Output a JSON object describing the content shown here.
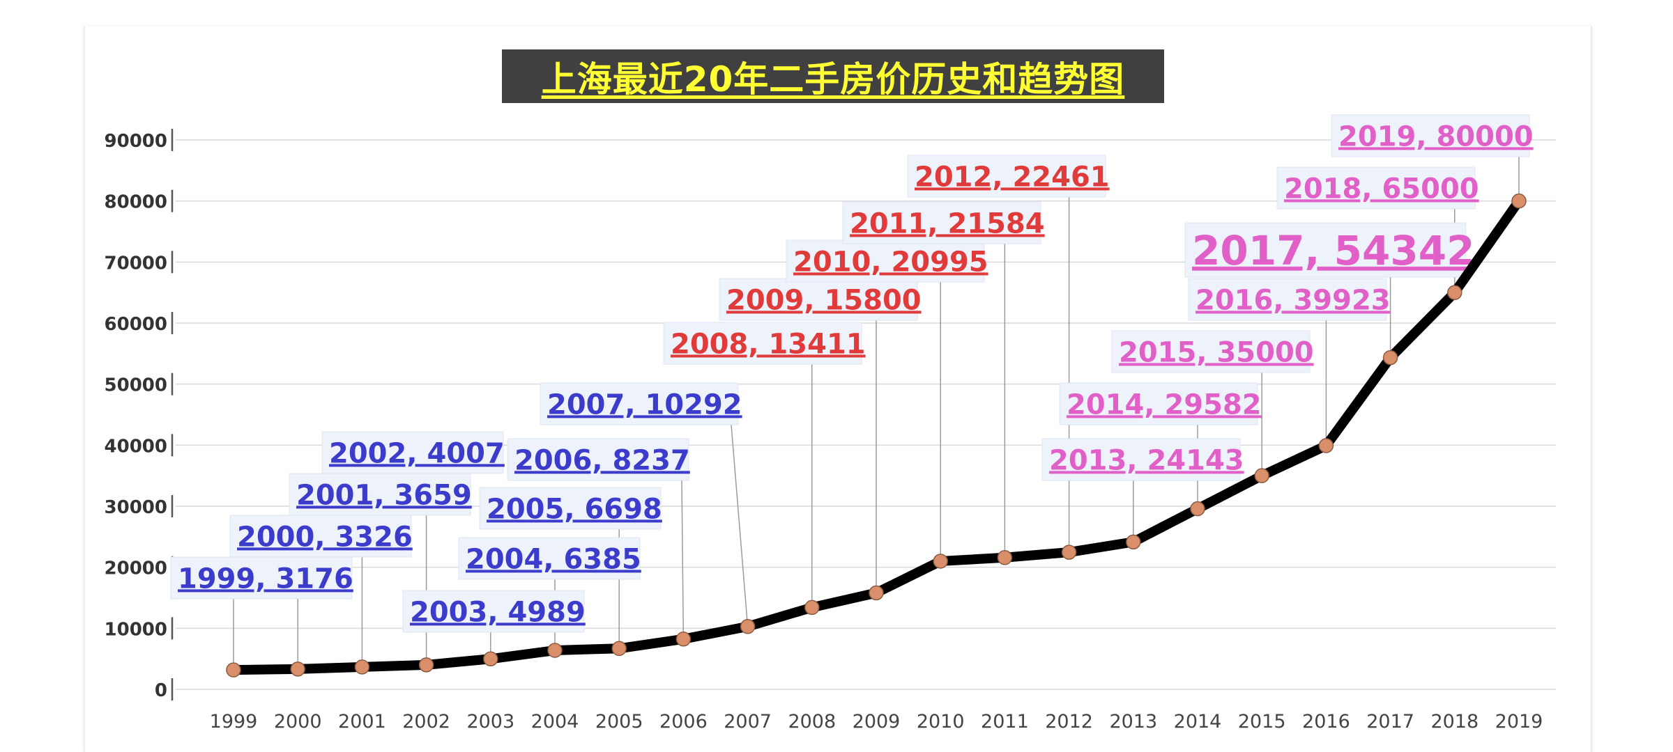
{
  "chart_data": {
    "type": "line",
    "title": "上海最近20年二手房价历史和趋势图",
    "xlabel": "",
    "ylabel": "",
    "ylim": [
      0,
      90000
    ],
    "yticks": [
      0,
      10000,
      20000,
      30000,
      40000,
      50000,
      60000,
      70000,
      80000,
      90000
    ],
    "grid": true,
    "legend": "none",
    "line_color": "#000000",
    "marker_color": "#d9906a",
    "categories": [
      "1999",
      "2000",
      "2001",
      "2002",
      "2003",
      "2004",
      "2005",
      "2006",
      "2007",
      "2008",
      "2009",
      "2010",
      "2011",
      "2012",
      "2013",
      "2014",
      "2015",
      "2016",
      "2017",
      "2018",
      "2019"
    ],
    "values": [
      3176,
      3326,
      3659,
      4007,
      4989,
      6385,
      6698,
      8237,
      10292,
      13411,
      15800,
      20995,
      21584,
      22461,
      24143,
      29582,
      35000,
      39923,
      54342,
      65000,
      80000
    ],
    "data_labels": [
      {
        "text": "1999, 3176",
        "color": "#3c3ccc"
      },
      {
        "text": "2000, 3326",
        "color": "#3c3ccc"
      },
      {
        "text": "2001, 3659",
        "color": "#3c3ccc"
      },
      {
        "text": "2002, 4007",
        "color": "#3c3ccc"
      },
      {
        "text": "2003, 4989",
        "color": "#3c3ccc"
      },
      {
        "text": "2004, 6385",
        "color": "#3c3ccc"
      },
      {
        "text": "2005, 6698",
        "color": "#3c3ccc"
      },
      {
        "text": "2006, 8237",
        "color": "#3c3ccc"
      },
      {
        "text": "2007, 10292",
        "color": "#3c3ccc"
      },
      {
        "text": "2008, 13411",
        "color": "#e03a3a"
      },
      {
        "text": "2009, 15800",
        "color": "#e03a3a"
      },
      {
        "text": "2010, 20995",
        "color": "#e03a3a"
      },
      {
        "text": "2011, 21584",
        "color": "#e03a3a"
      },
      {
        "text": "2012, 22461",
        "color": "#e03a3a"
      },
      {
        "text": "2013, 24143",
        "color": "#e060c8"
      },
      {
        "text": "2014, 29582",
        "color": "#e060c8"
      },
      {
        "text": "2015, 35000",
        "color": "#e060c8"
      },
      {
        "text": "2016, 39923",
        "color": "#e060c8"
      },
      {
        "text": "2017, 54342",
        "color": "#e060c8"
      },
      {
        "text": "2018, 65000",
        "color": "#e060c8"
      },
      {
        "text": "2019, 80000",
        "color": "#e060c8"
      }
    ]
  }
}
